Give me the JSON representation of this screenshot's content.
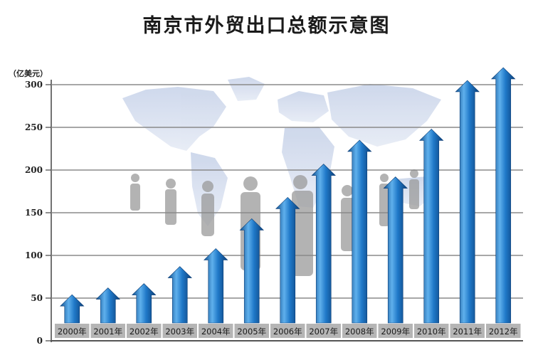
{
  "title": "南京市外贸出口总额示意图",
  "colors": {
    "arrow": "#1f78c8",
    "arrow_dark": "#0f4f8f",
    "arrow_light": "#5fb0ec",
    "grid": "#8a8a8a",
    "label_bg": "#b5b5b5",
    "map": "#d3dced",
    "figures": "#9a9a9a"
  },
  "chart_data": {
    "type": "bar",
    "title": "南京市外贸出口总额示意图",
    "ylabel": "（亿美元）",
    "xlabel": "",
    "ylim": [
      0,
      300
    ],
    "yticks": [
      0,
      50,
      100,
      150,
      200,
      250,
      300
    ],
    "grid": true,
    "categories": [
      "2000年",
      "2001年",
      "2002年",
      "2003年",
      "2004年",
      "2005年",
      "2006年",
      "2007年",
      "2008年",
      "2009年",
      "2010年",
      "2011年",
      "2012年"
    ],
    "values": [
      54,
      62,
      67,
      87,
      108,
      143,
      168,
      207,
      235,
      192,
      248,
      305,
      320
    ]
  }
}
